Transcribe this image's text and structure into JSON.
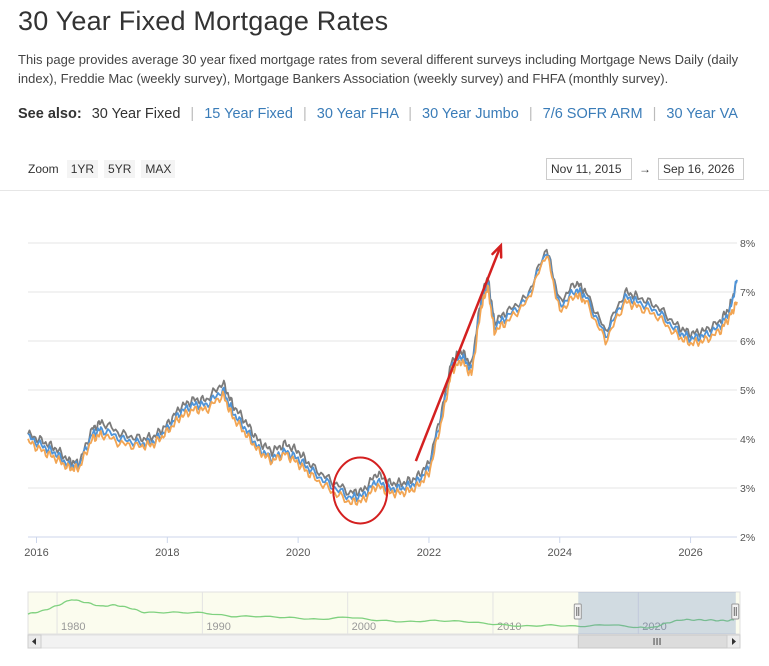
{
  "page": {
    "title": "30 Year Fixed Mortgage Rates",
    "description": "This page provides average 30 year fixed mortgage rates from several different surveys including Mortgage News Daily (daily index), Freddie Mac (weekly survey), Mortgage Bankers Association (weekly survey) and FHFA (monthly survey)."
  },
  "see_also": {
    "label": "See also:",
    "current": "30 Year Fixed",
    "links": [
      "15 Year Fixed",
      "30 Year FHA",
      "30 Year Jumbo",
      "7/6 SOFR ARM",
      "30 Year VA"
    ]
  },
  "zoom": {
    "label": "Zoom",
    "buttons": [
      "1YR",
      "5YR",
      "MAX"
    ]
  },
  "range": {
    "from": "Nov 11, 2015",
    "to": "Sep 16, 2026"
  },
  "chart_data": {
    "type": "line",
    "title": "",
    "xlabel": "",
    "ylabel": "",
    "xlim": [
      2015.87,
      2026.71
    ],
    "ylim": [
      2,
      8
    ],
    "x_ticks": [
      "2016",
      "2018",
      "2020",
      "2022",
      "2024",
      "2026"
    ],
    "y_ticks": [
      "2%",
      "3%",
      "4%",
      "5%",
      "6%",
      "7%",
      "8%"
    ],
    "grid": true,
    "colors": {
      "gray": "#7b7b7b",
      "blue": "#4f94d8",
      "orange": "#f2a553"
    },
    "series": [
      {
        "x": [
          2015.87,
          2016.1,
          2016.3,
          2016.5,
          2016.65,
          2016.85,
          2017.0,
          2017.3,
          2017.6,
          2017.8,
          2018.0,
          2018.2,
          2018.4,
          2018.6,
          2018.85,
          2019.0,
          2019.2,
          2019.4,
          2019.6,
          2019.8,
          2020.0,
          2020.2,
          2020.5,
          2020.8,
          2021.0,
          2021.2,
          2021.4,
          2021.6,
          2021.8,
          2022.0,
          2022.2,
          2022.35,
          2022.5,
          2022.65,
          2022.8,
          2022.9,
          2023.0,
          2023.2,
          2023.5,
          2023.8,
          2024.0,
          2024.25,
          2024.4,
          2024.7,
          2025.0,
          2025.2,
          2025.5,
          2025.8,
          2026.0,
          2026.2,
          2026.45,
          2026.6,
          2026.71
        ],
        "values": [
          4.1,
          3.95,
          3.8,
          3.55,
          3.5,
          4.2,
          4.35,
          4.1,
          4.0,
          4.05,
          4.3,
          4.65,
          4.8,
          4.8,
          5.15,
          4.7,
          4.35,
          3.95,
          3.75,
          3.9,
          3.75,
          3.45,
          3.15,
          2.9,
          2.95,
          3.3,
          3.1,
          3.1,
          3.2,
          3.5,
          4.6,
          5.6,
          5.8,
          5.5,
          6.9,
          7.3,
          6.4,
          6.6,
          6.9,
          7.9,
          6.8,
          7.2,
          7.0,
          6.2,
          7.0,
          6.9,
          6.7,
          6.3,
          6.15,
          6.2,
          6.4,
          6.7,
          7.2
        ]
      },
      {
        "x": [
          2015.87,
          2016.1,
          2016.3,
          2016.5,
          2016.65,
          2016.85,
          2017.0,
          2017.3,
          2017.6,
          2017.8,
          2018.0,
          2018.2,
          2018.4,
          2018.6,
          2018.85,
          2019.0,
          2019.2,
          2019.4,
          2019.6,
          2019.8,
          2020.0,
          2020.2,
          2020.5,
          2020.8,
          2021.0,
          2021.2,
          2021.4,
          2021.6,
          2021.8,
          2022.0,
          2022.2,
          2022.35,
          2022.5,
          2022.65,
          2022.8,
          2022.9,
          2023.0,
          2023.2,
          2023.5,
          2023.8,
          2024.0,
          2024.25,
          2024.4,
          2024.7,
          2025.0,
          2025.2,
          2025.5,
          2025.8,
          2026.0,
          2026.2,
          2026.45,
          2026.6,
          2026.71
        ],
        "values": [
          4.05,
          3.85,
          3.7,
          3.45,
          3.45,
          4.1,
          4.2,
          4.0,
          3.9,
          3.95,
          4.2,
          4.55,
          4.7,
          4.7,
          5.0,
          4.55,
          4.2,
          3.8,
          3.6,
          3.75,
          3.6,
          3.35,
          3.05,
          2.8,
          2.85,
          3.15,
          2.98,
          3.0,
          3.1,
          3.4,
          4.5,
          5.5,
          5.7,
          5.4,
          6.8,
          7.2,
          6.3,
          6.5,
          6.85,
          7.85,
          6.7,
          7.05,
          6.9,
          6.1,
          6.9,
          6.8,
          6.6,
          6.2,
          6.05,
          6.1,
          6.3,
          6.6,
          7.25
        ]
      },
      {
        "x": [
          2015.87,
          2016.1,
          2016.3,
          2016.5,
          2016.65,
          2016.85,
          2017.0,
          2017.3,
          2017.6,
          2017.8,
          2018.0,
          2018.2,
          2018.4,
          2018.6,
          2018.85,
          2019.0,
          2019.2,
          2019.4,
          2019.6,
          2019.8,
          2020.0,
          2020.2,
          2020.5,
          2020.8,
          2021.0,
          2021.2,
          2021.4,
          2021.6,
          2021.8,
          2022.0,
          2022.2,
          2022.35,
          2022.5,
          2022.65,
          2022.8,
          2022.9,
          2023.0,
          2023.2,
          2023.5,
          2023.8,
          2024.0,
          2024.25,
          2024.4,
          2024.7,
          2025.0,
          2025.2,
          2025.5,
          2025.8,
          2026.0,
          2026.2,
          2026.45,
          2026.6,
          2026.71
        ],
        "values": [
          3.95,
          3.75,
          3.6,
          3.4,
          3.4,
          4.0,
          4.1,
          3.9,
          3.85,
          3.9,
          4.15,
          4.45,
          4.6,
          4.6,
          4.9,
          4.45,
          4.1,
          3.75,
          3.55,
          3.7,
          3.5,
          3.25,
          2.95,
          2.7,
          2.75,
          3.05,
          2.9,
          2.9,
          3.0,
          3.3,
          4.4,
          5.4,
          5.6,
          5.3,
          6.7,
          7.1,
          6.2,
          6.4,
          6.8,
          7.8,
          6.6,
          6.95,
          6.8,
          6.0,
          6.8,
          6.7,
          6.5,
          6.1,
          5.95,
          6.0,
          6.2,
          6.5,
          6.8
        ]
      }
    ],
    "annotations": [
      {
        "type": "circle",
        "center": [
          2020.95,
          2.95
        ],
        "description": "red circle"
      },
      {
        "type": "arrow",
        "from": [
          2021.8,
          3.55
        ],
        "to": [
          2023.1,
          7.95
        ],
        "description": "red arrow"
      }
    ],
    "navigator": {
      "x_ticks": [
        "1980",
        "1990",
        "2000",
        "2010",
        "2020"
      ],
      "xlim": [
        1978,
        2027
      ],
      "ylim": [
        0,
        20
      ],
      "selected_range": [
        2015.87,
        2026.71
      ],
      "x": [
        1978,
        1979,
        1980,
        1981,
        1982,
        1983,
        1984,
        1985,
        1986,
        1988,
        1990,
        1992,
        1994,
        1996,
        1998,
        2000,
        2002,
        2004,
        2006,
        2008,
        2010,
        2012,
        2014,
        2016,
        2018,
        2020,
        2021,
        2022,
        2023,
        2024,
        2025,
        2026,
        2026.7
      ],
      "values": [
        9.5,
        11,
        13.5,
        16.5,
        15,
        13.2,
        13.8,
        12.4,
        10.2,
        10.3,
        10.1,
        8.4,
        8.4,
        7.8,
        6.9,
        8.1,
        6.5,
        5.8,
        6.4,
        6.0,
        4.7,
        3.7,
        4.2,
        3.6,
        4.5,
        3.1,
        3.0,
        5.3,
        6.8,
        6.7,
        6.6,
        6.3,
        6.8
      ]
    }
  },
  "footer": {
    "partial_text": "… … …"
  }
}
